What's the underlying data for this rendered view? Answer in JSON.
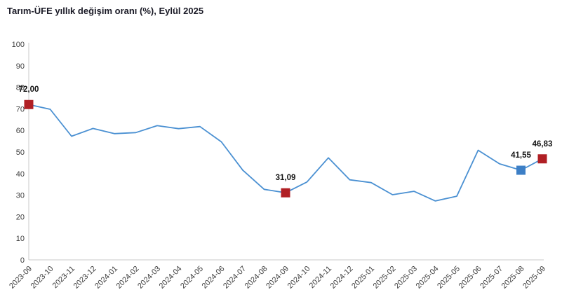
{
  "title": "Tarım-ÜFE yıllık değişim oranı (%), Eylül 2025",
  "colors": {
    "line": "#4a90d2",
    "marker_red": "#b01f24",
    "marker_blue": "#3d7fc6",
    "axis": "#c9c9c9",
    "tick_text": "#3d3d3d",
    "label_text": "#141414",
    "title_text": "#1a1a26",
    "background": "#ffffff"
  },
  "chart_data": {
    "type": "line",
    "title": "Tarım-ÜFE yıllık değişim oranı (%), Eylül 2025",
    "x": [
      "2023-09",
      "2023-10",
      "2023-11",
      "2023-12",
      "2024-01",
      "2024-02",
      "2024-03",
      "2024-04",
      "2024-05",
      "2024-06",
      "2024-07",
      "2024-08",
      "2024-09",
      "2024-10",
      "2024-11",
      "2024-12",
      "2025-01",
      "2025-02",
      "2025-03",
      "2025-04",
      "2025-05",
      "2025-06",
      "2025-07",
      "2025-08",
      "2025-09"
    ],
    "series": [
      {
        "name": "Tarım-ÜFE yıllık değişim oranı (%)",
        "values": [
          72.0,
          69.8,
          57.3,
          60.9,
          58.5,
          59.0,
          62.2,
          60.8,
          61.8,
          54.7,
          41.6,
          32.7,
          31.09,
          36.1,
          47.3,
          37.1,
          35.8,
          30.2,
          31.8,
          27.3,
          29.5,
          50.8,
          44.5,
          41.55,
          46.83
        ]
      }
    ],
    "ylim": [
      0,
      100
    ],
    "yticks": [
      0,
      10,
      20,
      30,
      40,
      50,
      60,
      70,
      80,
      90,
      100
    ],
    "grid": false,
    "legend": false,
    "labeled_points": [
      {
        "index": 0,
        "x": "2023-09",
        "label": "72,00",
        "marker": "red"
      },
      {
        "index": 12,
        "x": "2024-09",
        "label": "31,09",
        "marker": "red"
      },
      {
        "index": 23,
        "x": "2025-08",
        "label": "41,55",
        "marker": "blue"
      },
      {
        "index": 24,
        "x": "2025-09",
        "label": "46,83",
        "marker": "red"
      }
    ]
  }
}
